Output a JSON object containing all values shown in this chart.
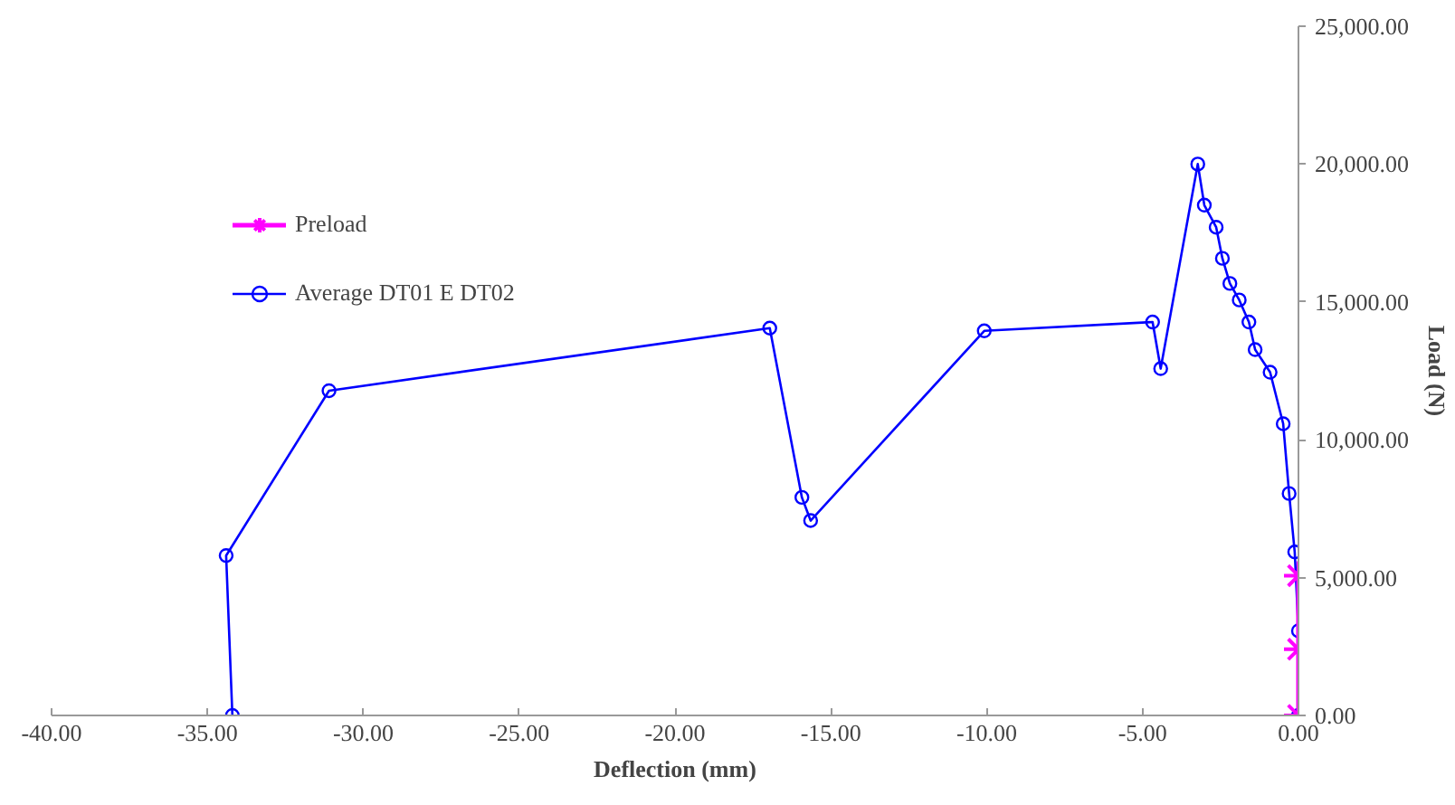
{
  "chart_data": {
    "type": "line",
    "xlabel": "Deflection (mm)",
    "ylabel": "Load (N)",
    "xlim": [
      -40,
      0
    ],
    "ylim": [
      0,
      25000
    ],
    "xticks": [
      {
        "value": -40,
        "label": "-40.00"
      },
      {
        "value": -35,
        "label": "-35.00"
      },
      {
        "value": -30,
        "label": "-30.00"
      },
      {
        "value": -25,
        "label": "-25.00"
      },
      {
        "value": -20,
        "label": "-20.00"
      },
      {
        "value": -15,
        "label": "-15.00"
      },
      {
        "value": -10,
        "label": "-10.00"
      },
      {
        "value": -5,
        "label": "-5.00"
      },
      {
        "value": 0,
        "label": "0.00"
      }
    ],
    "yticks": [
      {
        "value": 0,
        "label": "0.00"
      },
      {
        "value": 5000,
        "label": "5,000.00"
      },
      {
        "value": 10000,
        "label": "10,000.00"
      },
      {
        "value": 15000,
        "label": "15,000.00"
      },
      {
        "value": 20000,
        "label": "20,000.00"
      },
      {
        "value": 25000,
        "label": "25,000.00"
      }
    ],
    "grid": false,
    "legend": "top left",
    "series": [
      {
        "name": "Preload",
        "color": "#ff00ff",
        "marker": "cross",
        "x": [
          0,
          0,
          0
        ],
        "values": [
          0,
          2400,
          5070
        ]
      },
      {
        "name": "Average DT01 E DT02",
        "color": "#0000ff",
        "marker": "circle",
        "x": [
          0,
          0,
          -0.12,
          -0.3,
          -0.49,
          -0.91,
          -1.39,
          -1.59,
          -1.9,
          -2.2,
          -2.44,
          -2.64,
          -3.02,
          -3.23,
          -4.42,
          -4.68,
          -10.08,
          -15.65,
          -15.93,
          -16.96,
          -31.1,
          -34.4,
          -34.2
        ],
        "values": [
          0,
          3070,
          5930,
          8050,
          10580,
          12450,
          13270,
          14270,
          15070,
          15670,
          16580,
          17710,
          18510,
          20000,
          12580,
          14270,
          13950,
          7070,
          7910,
          14050,
          11780,
          5800,
          0
        ]
      }
    ]
  }
}
